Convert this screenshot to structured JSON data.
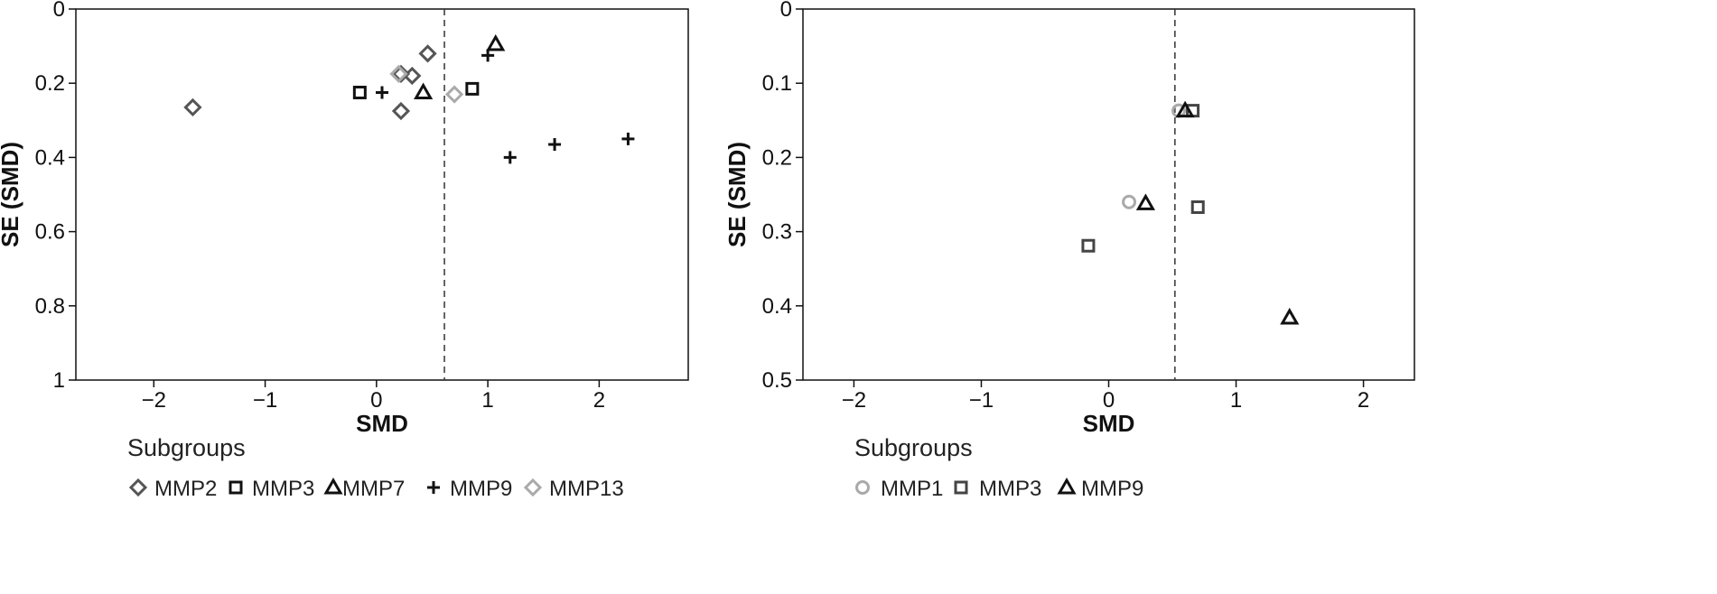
{
  "chart_data": [
    {
      "type": "scatter",
      "title": "",
      "xlabel": "SMD",
      "ylabel": "SE (SMD)",
      "xlim": [
        -2.7,
        2.8
      ],
      "ylim": [
        0,
        1
      ],
      "y_inverted": true,
      "xticks": [
        -2,
        -1,
        0,
        1,
        2
      ],
      "yticks": [
        0,
        0.2,
        0.4,
        0.6,
        0.8,
        1
      ],
      "xtick_labels": [
        "−2",
        "−1",
        "0",
        "1",
        "2"
      ],
      "ytick_labels": [
        "0",
        "0.2",
        "0.4",
        "0.6",
        "0.8",
        "1"
      ],
      "reference_line_x": 0.61,
      "grid": false,
      "legend": {
        "title": "Subgroups",
        "placement": "bottom",
        "entries": [
          "MMP2",
          "MMP3",
          "MMP7",
          "MMP9",
          "MMP13"
        ]
      },
      "series": [
        {
          "name": "MMP2",
          "marker": "diamond",
          "color": "#555555",
          "points": [
            {
              "x": -1.65,
              "y": 0.265
            },
            {
              "x": 0.46,
              "y": 0.12
            },
            {
              "x": 0.32,
              "y": 0.18
            },
            {
              "x": 0.22,
              "y": 0.275
            },
            {
              "x": 0.22,
              "y": 0.175
            }
          ]
        },
        {
          "name": "MMP3",
          "marker": "square",
          "color": "#111111",
          "points": [
            {
              "x": -0.15,
              "y": 0.225
            },
            {
              "x": 0.86,
              "y": 0.215
            }
          ]
        },
        {
          "name": "MMP7",
          "marker": "triangle",
          "color": "#111111",
          "points": [
            {
              "x": 1.07,
              "y": 0.095
            },
            {
              "x": 0.42,
              "y": 0.225
            }
          ]
        },
        {
          "name": "MMP9",
          "marker": "plus",
          "color": "#111111",
          "points": [
            {
              "x": 0.05,
              "y": 0.225
            },
            {
              "x": 1.0,
              "y": 0.125
            },
            {
              "x": 1.2,
              "y": 0.4
            },
            {
              "x": 1.6,
              "y": 0.365
            },
            {
              "x": 2.26,
              "y": 0.35
            }
          ]
        },
        {
          "name": "MMP13",
          "marker": "diamond",
          "color": "#aaaaaa",
          "points": [
            {
              "x": 0.7,
              "y": 0.23
            },
            {
              "x": 0.2,
              "y": 0.175
            }
          ]
        }
      ]
    },
    {
      "type": "scatter",
      "title": "",
      "xlabel": "SMD",
      "ylabel": "SE (SMD)",
      "xlim": [
        -2.4,
        2.4
      ],
      "ylim": [
        0,
        0.5
      ],
      "y_inverted": true,
      "xticks": [
        -2,
        -1,
        0,
        1,
        2
      ],
      "yticks": [
        0,
        0.1,
        0.2,
        0.3,
        0.4,
        0.5
      ],
      "xtick_labels": [
        "−2",
        "−1",
        "0",
        "1",
        "2"
      ],
      "ytick_labels": [
        "0",
        "0.1",
        "0.2",
        "0.3",
        "0.4",
        "0.5"
      ],
      "reference_line_x": 0.52,
      "grid": false,
      "legend": {
        "title": "Subgroups",
        "placement": "bottom",
        "entries": [
          "MMP1",
          "MMP3",
          "MMP9"
        ]
      },
      "series": [
        {
          "name": "MMP1",
          "marker": "circle",
          "color": "#aaaaaa",
          "points": [
            {
              "x": 0.55,
              "y": 0.137
            },
            {
              "x": 0.16,
              "y": 0.26
            }
          ]
        },
        {
          "name": "MMP3",
          "marker": "square",
          "color": "#444444",
          "points": [
            {
              "x": 0.66,
              "y": 0.137
            },
            {
              "x": 0.7,
              "y": 0.267
            },
            {
              "x": -0.16,
              "y": 0.319
            }
          ]
        },
        {
          "name": "MMP9",
          "marker": "triangle",
          "color": "#111111",
          "points": [
            {
              "x": 0.6,
              "y": 0.137
            },
            {
              "x": 0.29,
              "y": 0.262
            },
            {
              "x": 1.42,
              "y": 0.416
            }
          ]
        }
      ]
    }
  ]
}
